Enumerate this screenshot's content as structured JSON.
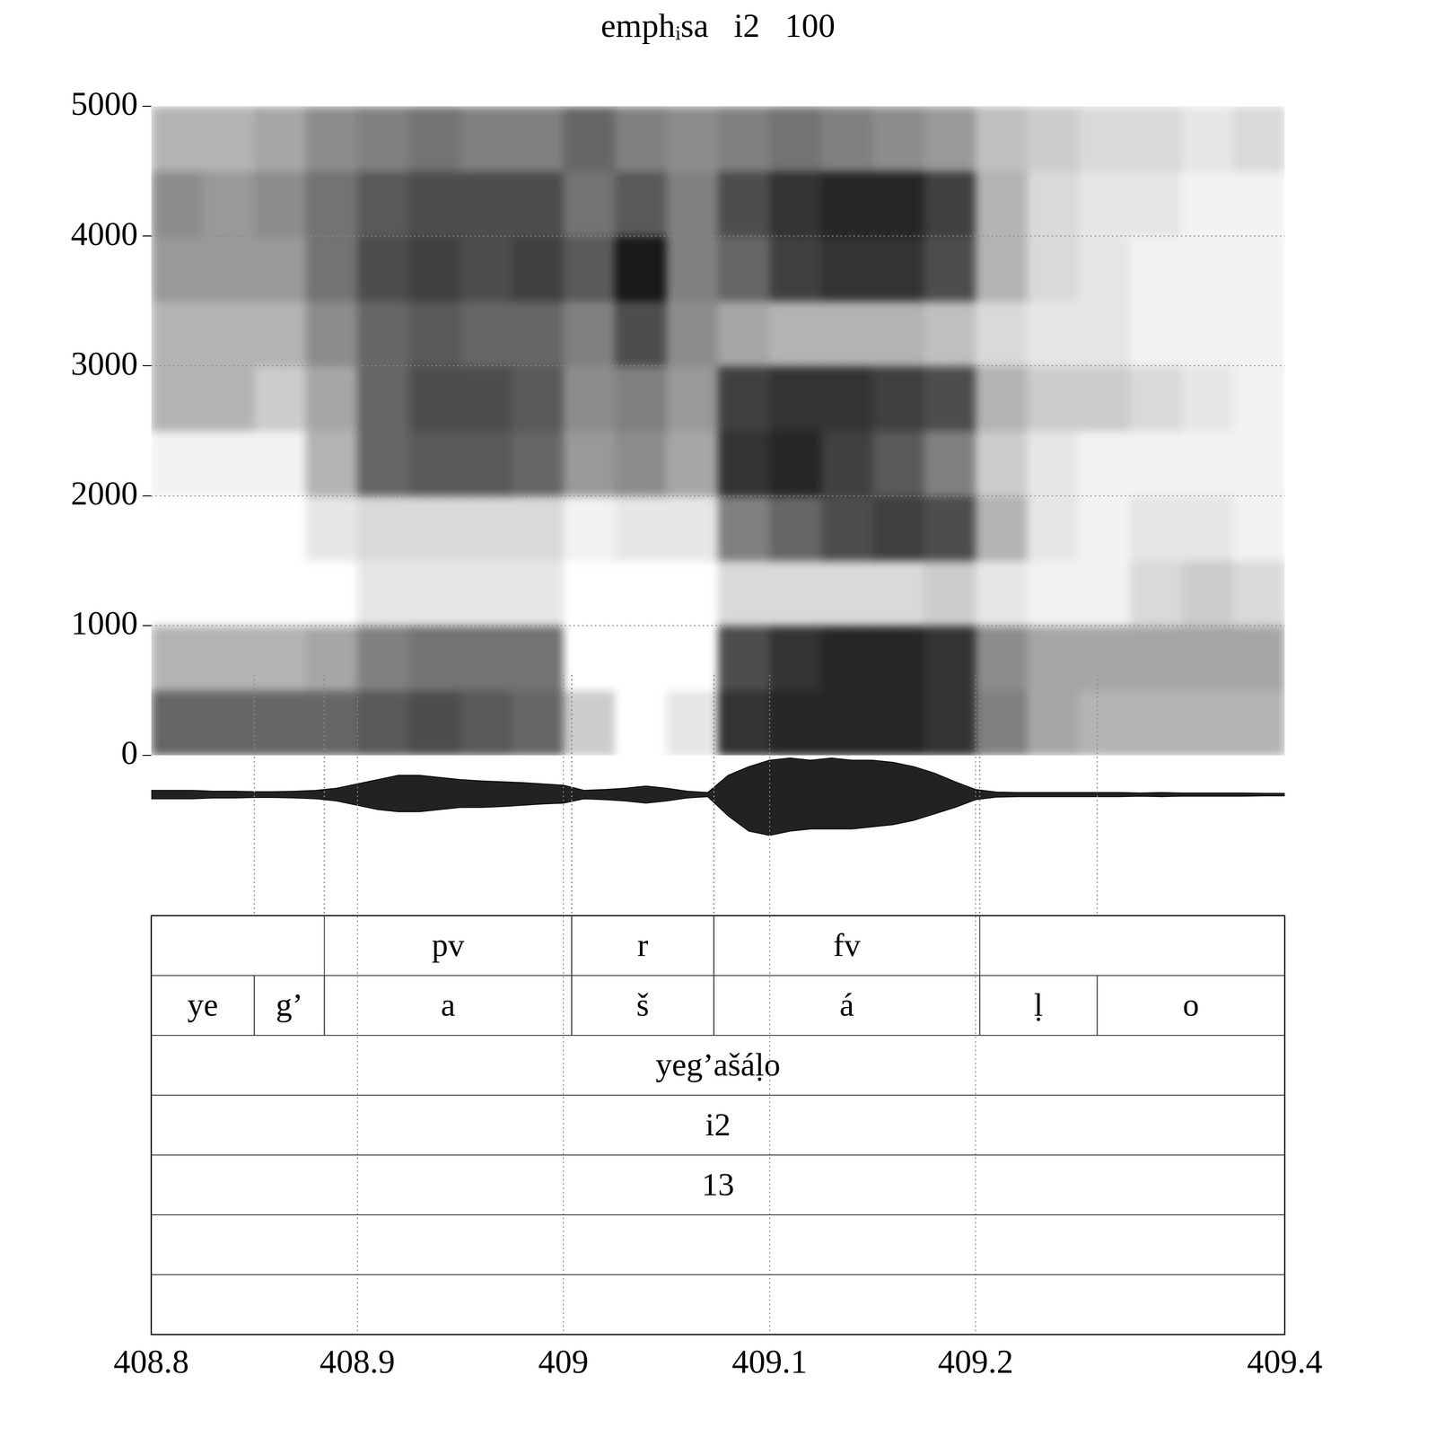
{
  "chart_data": {
    "type": "spectrogram",
    "title": "emphᵢsa   i2   100",
    "xlim": [
      408.8,
      409.35
    ],
    "xticks": [
      408.8,
      408.9,
      409,
      409.1,
      409.2,
      {
        "value": 409.35,
        "label": "409.4"
      }
    ],
    "ylim": [
      0,
      5000
    ],
    "yticks": [
      0,
      1000,
      2000,
      3000,
      4000,
      5000
    ],
    "grid": true,
    "spectrogram": {
      "time_edges": [
        408.8,
        408.825,
        408.85,
        408.875,
        408.9,
        408.925,
        408.95,
        408.975,
        409.0,
        409.025,
        409.05,
        409.075,
        409.1,
        409.125,
        409.15,
        409.175,
        409.2,
        409.225,
        409.25,
        409.275,
        409.3,
        409.325,
        409.35
      ],
      "freq_edges": [
        0,
        500,
        1000,
        1500,
        2000,
        2500,
        3000,
        3500,
        4000,
        4500,
        5000
      ],
      "intensity": [
        [
          0.6,
          0.3,
          0,
          0,
          0.05,
          0.3,
          0.3,
          0.4,
          0.45,
          0.3
        ],
        [
          0.6,
          0.3,
          0,
          0,
          0.05,
          0.3,
          0.3,
          0.4,
          0.4,
          0.3
        ],
        [
          0.6,
          0.3,
          0,
          0,
          0.05,
          0.2,
          0.3,
          0.4,
          0.45,
          0.35
        ],
        [
          0.6,
          0.35,
          0,
          0.1,
          0.3,
          0.35,
          0.45,
          0.55,
          0.55,
          0.45
        ],
        [
          0.65,
          0.5,
          0.1,
          0.15,
          0.6,
          0.6,
          0.6,
          0.7,
          0.65,
          0.5
        ],
        [
          0.7,
          0.55,
          0.1,
          0.15,
          0.65,
          0.7,
          0.65,
          0.75,
          0.7,
          0.55
        ],
        [
          0.65,
          0.55,
          0.1,
          0.15,
          0.65,
          0.7,
          0.6,
          0.7,
          0.7,
          0.5
        ],
        [
          0.6,
          0.55,
          0.1,
          0.15,
          0.6,
          0.65,
          0.6,
          0.75,
          0.7,
          0.5
        ],
        [
          0.2,
          0,
          0,
          0.05,
          0.4,
          0.45,
          0.5,
          0.65,
          0.55,
          0.6
        ],
        [
          0,
          0,
          0,
          0.1,
          0.45,
          0.5,
          0.7,
          0.9,
          0.65,
          0.5
        ],
        [
          0.1,
          0,
          0,
          0.1,
          0.35,
          0.4,
          0.45,
          0.5,
          0.5,
          0.45
        ],
        [
          0.8,
          0.7,
          0.15,
          0.5,
          0.8,
          0.75,
          0.35,
          0.6,
          0.7,
          0.5
        ],
        [
          0.85,
          0.8,
          0.15,
          0.6,
          0.85,
          0.8,
          0.3,
          0.75,
          0.8,
          0.55
        ],
        [
          0.85,
          0.85,
          0.15,
          0.7,
          0.75,
          0.8,
          0.3,
          0.8,
          0.85,
          0.5
        ],
        [
          0.85,
          0.85,
          0.15,
          0.75,
          0.65,
          0.75,
          0.3,
          0.8,
          0.85,
          0.45
        ],
        [
          0.8,
          0.8,
          0.2,
          0.7,
          0.5,
          0.7,
          0.25,
          0.7,
          0.75,
          0.4
        ],
        [
          0.5,
          0.45,
          0.1,
          0.3,
          0.2,
          0.3,
          0.15,
          0.3,
          0.3,
          0.25
        ],
        [
          0.35,
          0.35,
          0.05,
          0.1,
          0.1,
          0.2,
          0.1,
          0.15,
          0.15,
          0.2
        ],
        [
          0.3,
          0.35,
          0.05,
          0.05,
          0.05,
          0.2,
          0.1,
          0.1,
          0.1,
          0.15
        ],
        [
          0.3,
          0.35,
          0.15,
          0.1,
          0.05,
          0.15,
          0.05,
          0.05,
          0.1,
          0.15
        ],
        [
          0.3,
          0.35,
          0.2,
          0.1,
          0.05,
          0.1,
          0.05,
          0.05,
          0.05,
          0.1
        ],
        [
          0.3,
          0.35,
          0.15,
          0.05,
          0.05,
          0.05,
          0.05,
          0.05,
          0.05,
          0.15
        ]
      ]
    },
    "waveform": {
      "ylim": [
        -1,
        1
      ],
      "x": [
        408.8,
        408.81,
        408.82,
        408.83,
        408.84,
        408.85,
        408.86,
        408.87,
        408.88,
        408.89,
        408.9,
        408.91,
        408.92,
        408.93,
        408.94,
        408.95,
        408.96,
        408.97,
        408.98,
        408.99,
        409.0,
        409.01,
        409.02,
        409.03,
        409.04,
        409.05,
        409.06,
        409.07,
        409.08,
        409.09,
        409.1,
        409.11,
        409.12,
        409.13,
        409.14,
        409.15,
        409.16,
        409.17,
        409.18,
        409.19,
        409.2,
        409.21,
        409.22,
        409.23,
        409.24,
        409.25,
        409.26,
        409.27,
        409.28,
        409.29,
        409.3,
        409.31,
        409.32,
        409.33,
        409.34,
        409.35
      ],
      "max": [
        0.1,
        0.1,
        0.1,
        0.08,
        0.08,
        0.07,
        0.07,
        0.08,
        0.1,
        0.15,
        0.25,
        0.35,
        0.45,
        0.45,
        0.4,
        0.35,
        0.32,
        0.3,
        0.28,
        0.25,
        0.22,
        0.1,
        0.12,
        0.15,
        0.2,
        0.15,
        0.08,
        0.05,
        0.45,
        0.65,
        0.8,
        0.85,
        0.8,
        0.85,
        0.8,
        0.8,
        0.75,
        0.65,
        0.5,
        0.3,
        0.12,
        0.06,
        0.05,
        0.05,
        0.05,
        0.05,
        0.05,
        0.05,
        0.04,
        0.05,
        0.04,
        0.04,
        0.04,
        0.04,
        0.03,
        0.03
      ],
      "min": [
        -0.1,
        -0.1,
        -0.1,
        -0.08,
        -0.08,
        -0.07,
        -0.07,
        -0.08,
        -0.1,
        -0.15,
        -0.25,
        -0.35,
        -0.4,
        -0.4,
        -0.35,
        -0.3,
        -0.3,
        -0.28,
        -0.25,
        -0.22,
        -0.2,
        -0.1,
        -0.12,
        -0.15,
        -0.2,
        -0.15,
        -0.08,
        -0.05,
        -0.5,
        -0.85,
        -0.95,
        -0.85,
        -0.8,
        -0.8,
        -0.8,
        -0.75,
        -0.7,
        -0.6,
        -0.45,
        -0.3,
        -0.12,
        -0.06,
        -0.05,
        -0.05,
        -0.05,
        -0.05,
        -0.05,
        -0.05,
        -0.04,
        -0.05,
        -0.04,
        -0.04,
        -0.04,
        -0.04,
        -0.03,
        -0.03
      ]
    },
    "tiers": [
      {
        "intervals": [
          {
            "start": 408.884,
            "end": 409.004,
            "label": "pv"
          },
          {
            "start": 409.004,
            "end": 409.073,
            "label": "r"
          },
          {
            "start": 409.073,
            "end": 409.202,
            "label": "fv"
          }
        ]
      },
      {
        "intervals": [
          {
            "start": 408.8,
            "end": 408.85,
            "label": "ye"
          },
          {
            "start": 408.85,
            "end": 408.884,
            "label": "g’"
          },
          {
            "start": 408.884,
            "end": 409.004,
            "label": "a"
          },
          {
            "start": 409.004,
            "end": 409.073,
            "label": "š"
          },
          {
            "start": 409.073,
            "end": 409.202,
            "label": "á"
          },
          {
            "start": 409.202,
            "end": 409.259,
            "label": "ḷ"
          },
          {
            "start": 409.259,
            "end": 409.35,
            "label": "o"
          }
        ]
      },
      {
        "intervals": [
          {
            "start": 408.8,
            "end": 409.35,
            "label": "yeg’ašáḷo"
          }
        ]
      },
      {
        "intervals": [
          {
            "start": 408.8,
            "end": 409.35,
            "label": "i2"
          }
        ]
      },
      {
        "intervals": [
          {
            "start": 408.8,
            "end": 409.35,
            "label": "13"
          }
        ]
      },
      {
        "intervals": []
      },
      {
        "intervals": []
      }
    ]
  }
}
